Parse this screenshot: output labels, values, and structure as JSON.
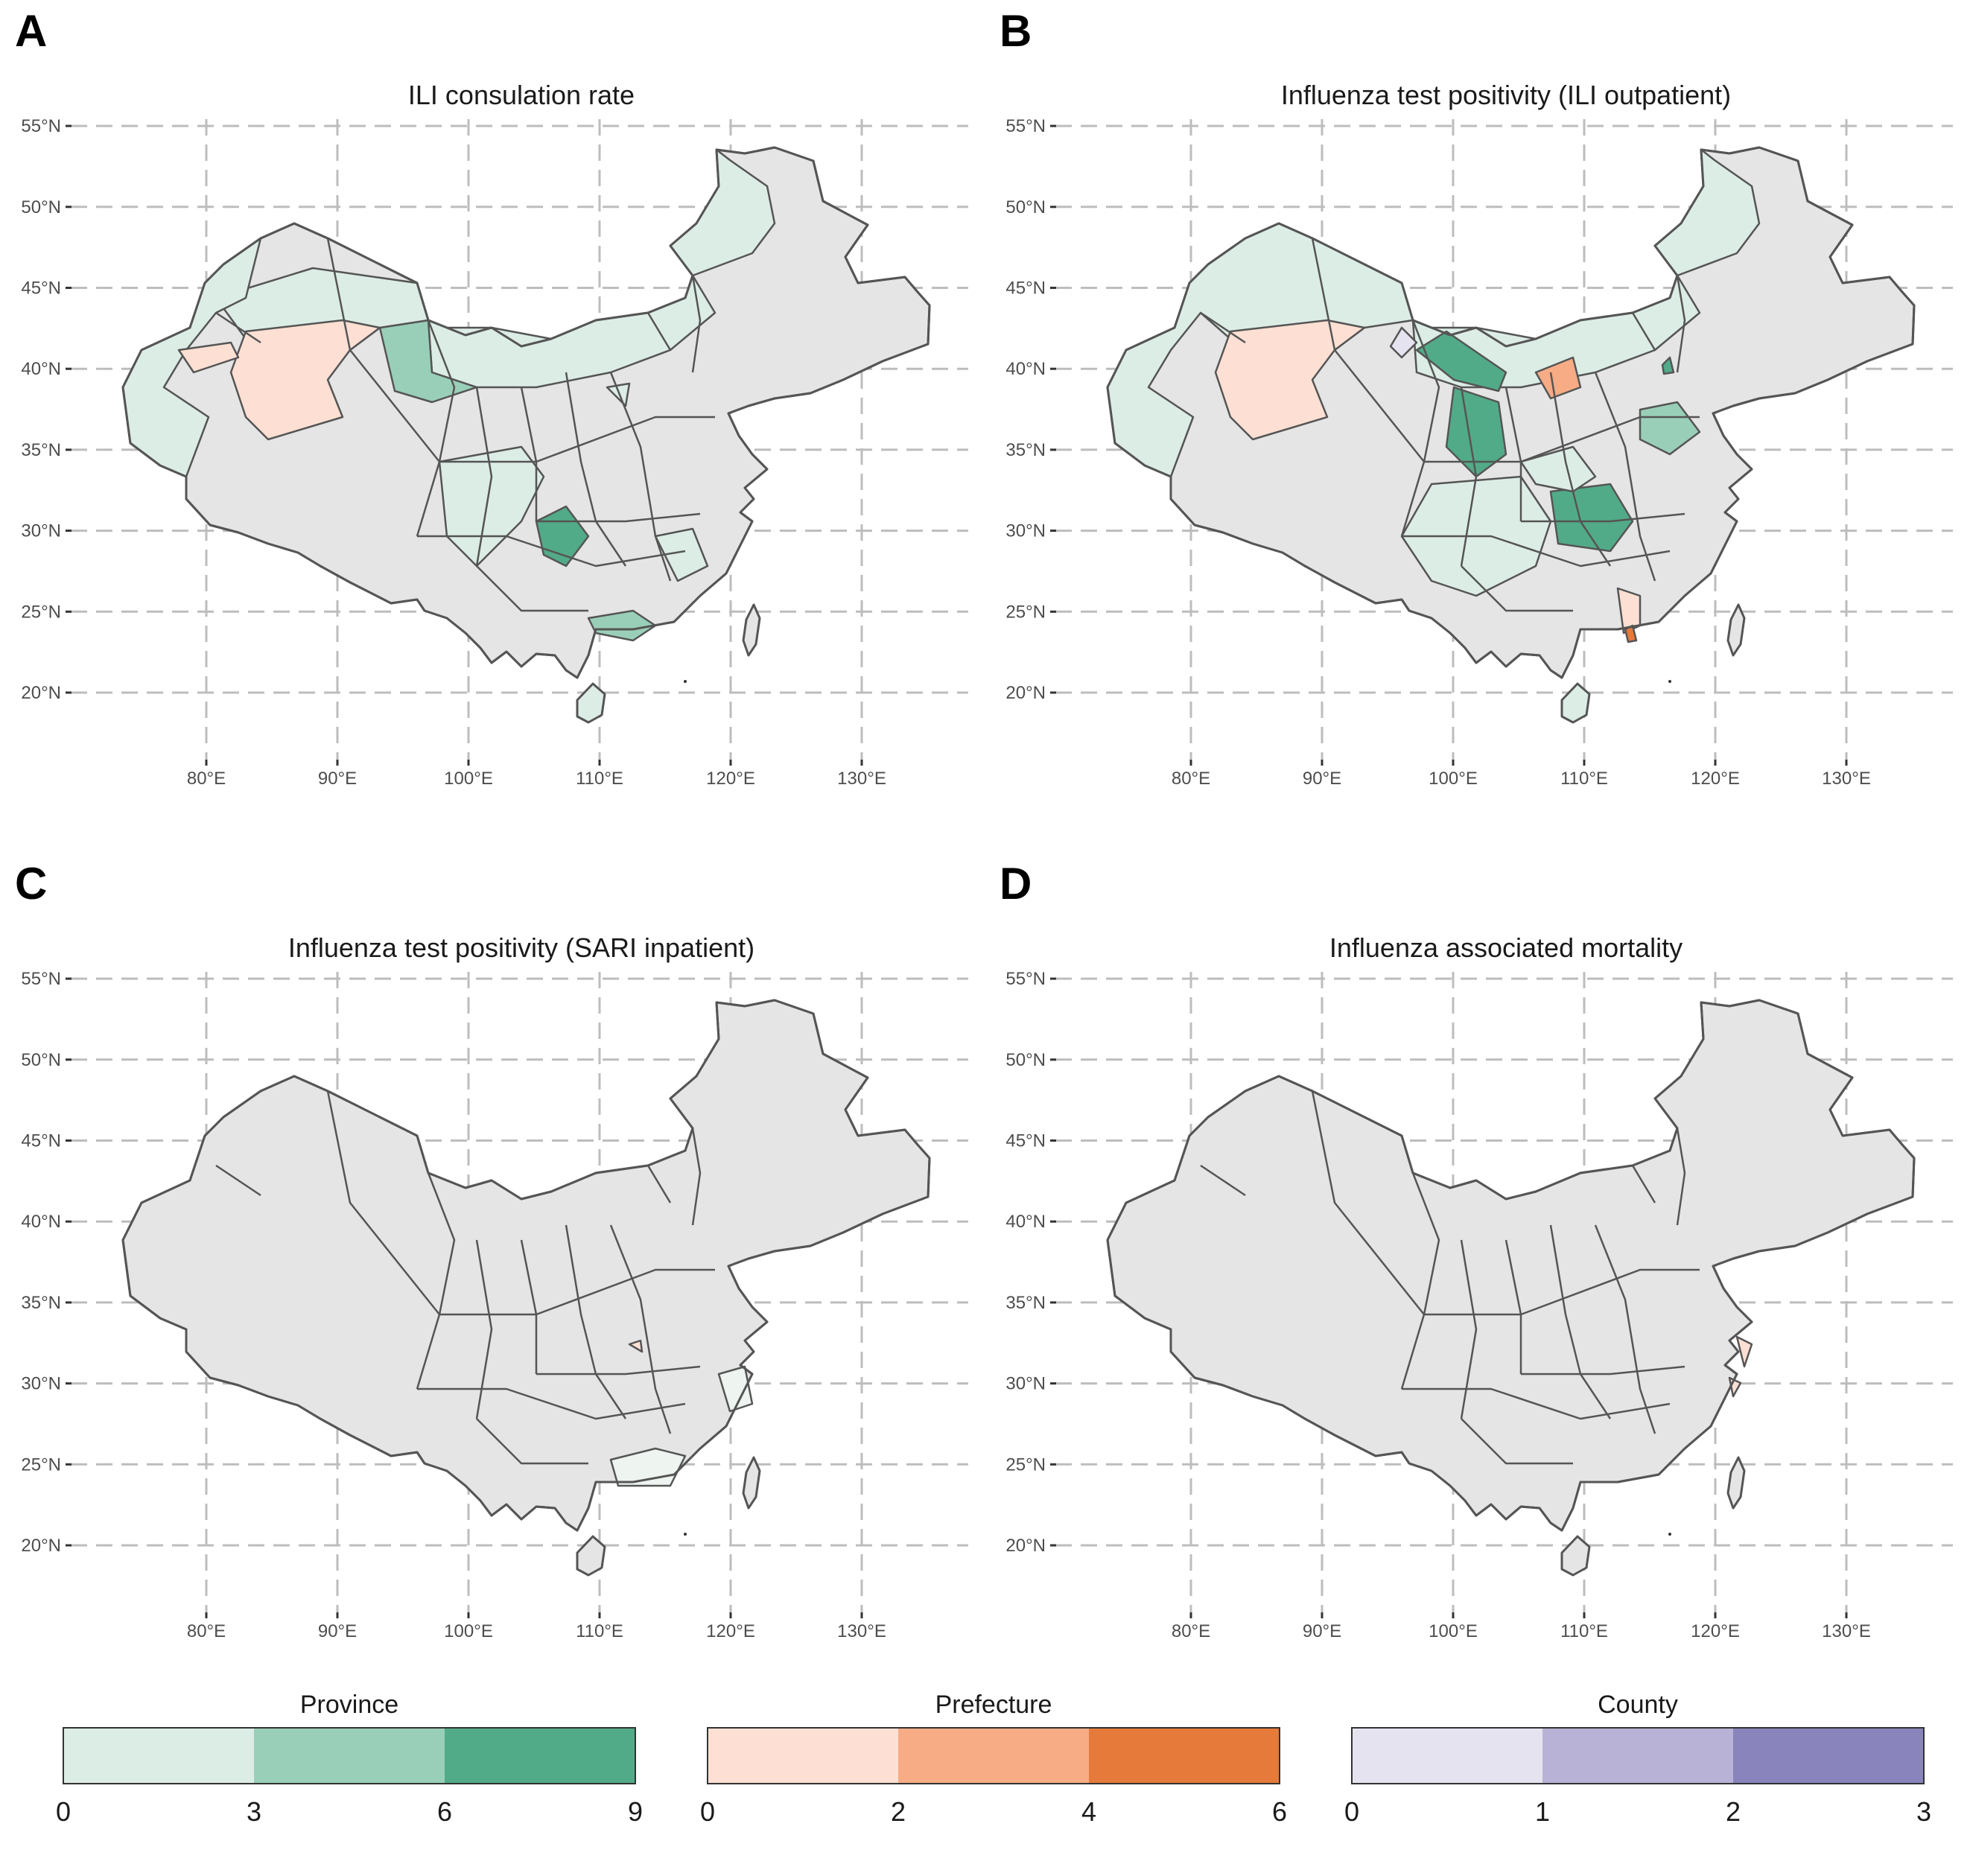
{
  "panels": [
    {
      "letter": "A",
      "title": "ILI consulation rate"
    },
    {
      "letter": "B",
      "title": "Influenza test positivity (ILI outpatient)"
    },
    {
      "letter": "C",
      "title": "Influenza test positivity (SARI inpatient)"
    },
    {
      "letter": "D",
      "title": "Influenza associated mortality"
    }
  ],
  "axes": {
    "lat_labels": [
      "55°N",
      "50°N",
      "45°N",
      "40°N",
      "35°N",
      "30°N",
      "25°N",
      "20°N"
    ],
    "lat_values": [
      55,
      50,
      45,
      40,
      35,
      30,
      25,
      20
    ],
    "lon_labels": [
      "80°E",
      "90°E",
      "100°E",
      "110°E",
      "120°E",
      "130°E"
    ],
    "lon_values": [
      80,
      90,
      100,
      110,
      120,
      130
    ]
  },
  "legends": [
    {
      "title": "Province",
      "breaks": [
        "0",
        "3",
        "6",
        "9"
      ],
      "colors": [
        "#dcede6",
        "#99cfb8",
        "#52ab88"
      ]
    },
    {
      "title": "Prefecture",
      "breaks": [
        "0",
        "2",
        "4",
        "6"
      ],
      "colors": [
        "#fde0d3",
        "#f7ac85",
        "#e57a3b"
      ]
    },
    {
      "title": "County",
      "breaks": [
        "0",
        "1",
        "2",
        "3"
      ],
      "colors": [
        "#e6e3f1",
        "#b8b2d6",
        "#8a84bd"
      ]
    }
  ],
  "colors": {
    "no_data": "#e5e5e5",
    "border": "#555555",
    "grid": "#bdbdbd"
  }
}
